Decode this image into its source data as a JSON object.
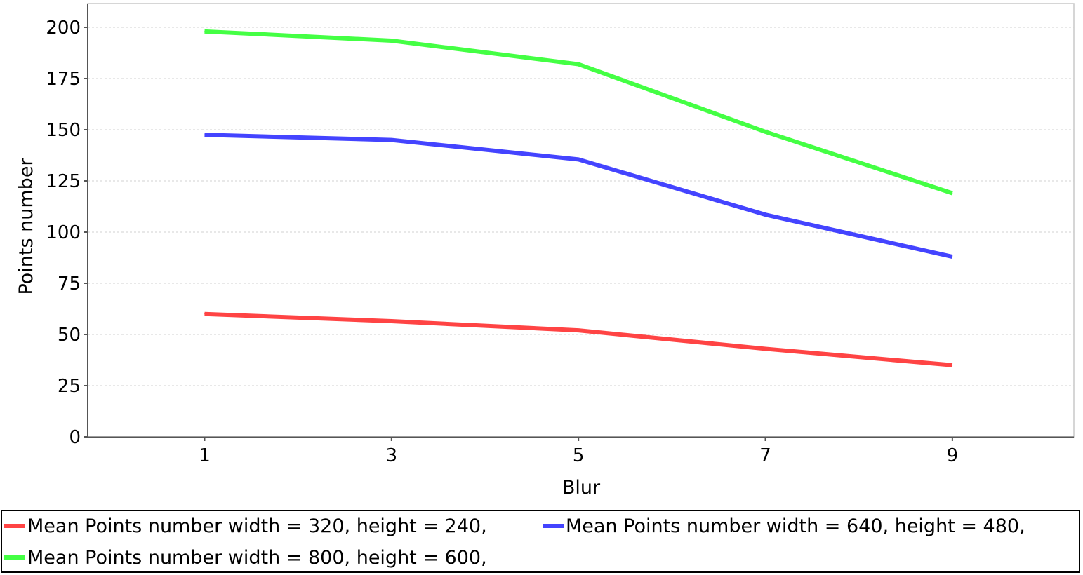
{
  "chart_data": {
    "type": "line",
    "title": "",
    "xlabel": "Blur",
    "ylabel": "Points number",
    "x": [
      1,
      3,
      5,
      7,
      9
    ],
    "xticks": [
      "1",
      "3",
      "5",
      "7",
      "9"
    ],
    "xlim": [
      -0.25,
      10.3
    ],
    "ylim": [
      0,
      200
    ],
    "yticks": [
      "0",
      "25",
      "50",
      "75",
      "100",
      "125",
      "150",
      "175",
      "200"
    ],
    "grid": true,
    "legend_position": "bottom",
    "series": [
      {
        "name": "Mean Points number width = 320, height = 240,",
        "color": "#ff4444",
        "values": [
          60,
          56.5,
          52,
          43,
          35
        ]
      },
      {
        "name": "Mean Points number width = 640, height = 480,",
        "color": "#4444ff",
        "values": [
          147.5,
          145,
          135.5,
          108.5,
          88
        ]
      },
      {
        "name": "Mean Points number width = 800, height = 600,",
        "color": "#44ff44",
        "values": [
          198,
          193.5,
          182,
          149,
          119
        ]
      }
    ]
  }
}
